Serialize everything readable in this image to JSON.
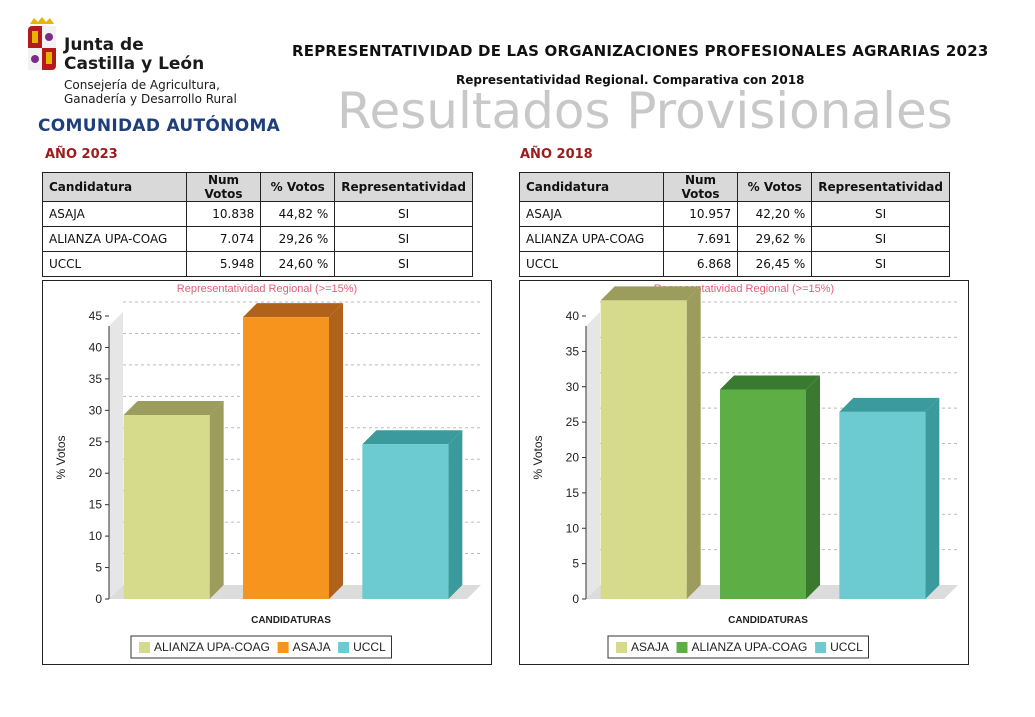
{
  "header": {
    "org_line1": "Junta de",
    "org_line2": "Castilla y León",
    "dept_line1": "Consejería de Agricultura,",
    "dept_line2": "Ganadería y Desarrollo Rural",
    "region": "COMUNIDAD AUTÓNOMA",
    "title": "REPRESENTATIVIDAD DE LAS ORGANIZACIONES PROFESIONALES AGRARIAS 2023",
    "subtitle": "Representatividad Regional. Comparativa con 2018",
    "watermark": "Resultados Provisionales"
  },
  "tables": {
    "headers": [
      "Candidatura",
      "Num Votos",
      "% Votos",
      "Representatividad"
    ],
    "y2023": {
      "label": "AÑO 2023",
      "rows": [
        [
          "ASAJA",
          "10.838",
          "44,82 %",
          "SI"
        ],
        [
          "ALIANZA UPA-COAG",
          "7.074",
          "29,26 %",
          "SI"
        ],
        [
          "UCCL",
          "5.948",
          "24,60 %",
          "SI"
        ]
      ]
    },
    "y2018": {
      "label": "AÑO 2018",
      "rows": [
        [
          "ASAJA",
          "10.957",
          "42,20 %",
          "SI"
        ],
        [
          "ALIANZA UPA-COAG",
          "7.691",
          "29,62 %",
          "SI"
        ],
        [
          "UCCL",
          "6.868",
          "26,45 %",
          "SI"
        ]
      ]
    }
  },
  "chart_data": [
    {
      "type": "bar",
      "title": "Representatividad Regional (>=15%)",
      "xlabel": "CANDIDATURAS",
      "ylabel": "% Votos",
      "categories": [
        "ALIANZA UPA-COAG",
        "ASAJA",
        "UCCL"
      ],
      "values": [
        29.26,
        44.82,
        24.6
      ],
      "colors": [
        "#d6db8c",
        "#f7941d",
        "#6ccbd0"
      ],
      "side_colors": [
        "#9c9c5c",
        "#b0621a",
        "#3a9a9c"
      ],
      "ylim": [
        0,
        45
      ],
      "yticks": [
        0,
        5,
        10,
        15,
        20,
        25,
        30,
        35,
        40,
        45
      ],
      "grid": true,
      "legend": "bottom"
    },
    {
      "type": "bar",
      "title": "Representatividad Regional (>=15%)",
      "xlabel": "CANDIDATURAS",
      "ylabel": "% Votos",
      "categories": [
        "ASAJA",
        "ALIANZA UPA-COAG",
        "UCCL"
      ],
      "values": [
        42.2,
        29.62,
        26.45
      ],
      "colors": [
        "#d6db8c",
        "#5cae45",
        "#6ccbd0"
      ],
      "side_colors": [
        "#9c9c5c",
        "#3a7a30",
        "#3a9a9c"
      ],
      "ylim": [
        0,
        40
      ],
      "yticks": [
        0,
        5,
        10,
        15,
        20,
        25,
        30,
        35,
        40
      ],
      "grid": true,
      "legend": "bottom"
    }
  ]
}
